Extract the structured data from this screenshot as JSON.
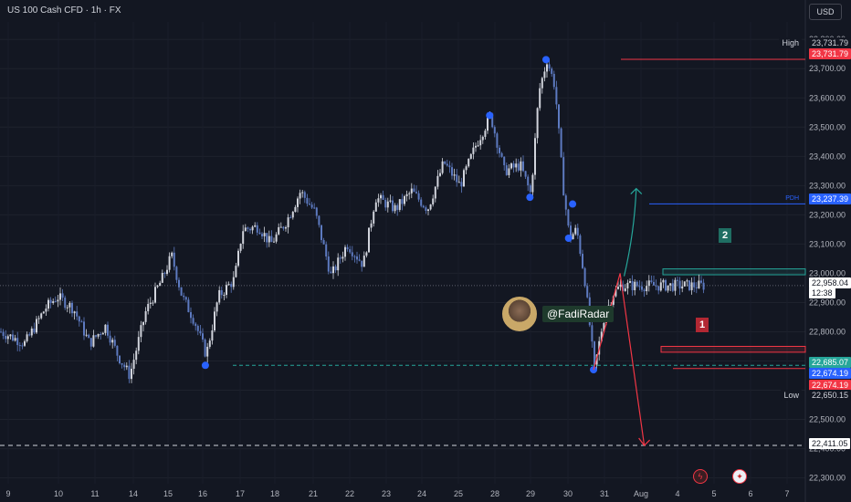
{
  "header": {
    "symbol_title": "US 100 Cash CFD · 1h · FX",
    "currency": "USD"
  },
  "author": {
    "handle": "@FadiRadar"
  },
  "badges": {
    "scenario_1": "1",
    "scenario_2": "2"
  },
  "colors": {
    "background": "#131722",
    "candle_up": "#d1d4dc",
    "candle_down": "#5d7ac0",
    "resistance_red": "#f23645",
    "pdh_blue": "#2962ff",
    "target_teal": "#26a69a",
    "swing_dot": "#2962ff"
  },
  "chart_data": {
    "type": "candlestick",
    "title": "US 100 Cash CFD · 1h · FX",
    "y_axis": {
      "ticks": [
        22300,
        22400,
        22500,
        22600,
        22700,
        22800,
        22900,
        23000,
        23100,
        23200,
        23300,
        23400,
        23500,
        23600,
        23700,
        23800
      ],
      "tick_labels": [
        "22,300.00",
        "22,400.00",
        "22,500.00",
        "22,600.00",
        "22,700.00",
        "22,800.00",
        "22,900.00",
        "23,000.00",
        "23,100.00",
        "23,200.00",
        "23,300.00",
        "23,400.00",
        "23,500.00",
        "23,600.00",
        "23,700.00",
        "23,800.00"
      ],
      "range": [
        22280,
        23860
      ]
    },
    "x_axis": {
      "tick_labels": [
        "9",
        "10",
        "11",
        "14",
        "15",
        "16",
        "17",
        "18",
        "21",
        "22",
        "23",
        "24",
        "25",
        "28",
        "29",
        "30",
        "31",
        "Aug",
        "4",
        "5",
        "6",
        "7"
      ]
    },
    "price_tags": [
      {
        "label": "High",
        "value": "23,731.79",
        "kind": "high"
      },
      {
        "label": "",
        "value": "23,731.79",
        "kind": "red"
      },
      {
        "label": "PDH",
        "value": "23,237.39",
        "kind": "blue"
      },
      {
        "label": "",
        "value": "22,958.04",
        "kind": "current"
      },
      {
        "label": "",
        "value": "12:38",
        "kind": "countdown"
      },
      {
        "label": "",
        "value": "22,685.07",
        "kind": "teal"
      },
      {
        "label": "",
        "value": "22,674.19",
        "kind": "blue"
      },
      {
        "label": "",
        "value": "22,674.19",
        "kind": "red"
      },
      {
        "label": "Low",
        "value": "22,650.15",
        "kind": "low"
      },
      {
        "label": "",
        "value": "22,411.05",
        "kind": "white"
      }
    ],
    "levels": {
      "high": 23731.79,
      "pdh": 23237.39,
      "current": 22958.04,
      "equal_lows": 22685.07,
      "low_red": 22674.19,
      "low": 22650.15,
      "target": 22411.05,
      "resistance_zone": [
        22995,
        23015
      ],
      "support_zone": [
        22730,
        22750
      ]
    },
    "key_points": [
      {
        "x": 0.255,
        "y": 22685
      },
      {
        "x": 0.608,
        "y": 23540
      },
      {
        "x": 0.658,
        "y": 23260
      },
      {
        "x": 0.678,
        "y": 23731
      },
      {
        "x": 0.706,
        "y": 23120
      },
      {
        "x": 0.711,
        "y": 23237
      },
      {
        "x": 0.737,
        "y": 22670
      }
    ],
    "path": [
      [
        0.0,
        22800
      ],
      [
        0.03,
        22760
      ],
      [
        0.055,
        22880
      ],
      [
        0.07,
        22920
      ],
      [
        0.09,
        22880
      ],
      [
        0.11,
        22760
      ],
      [
        0.13,
        22820
      ],
      [
        0.145,
        22720
      ],
      [
        0.16,
        22650
      ],
      [
        0.18,
        22870
      ],
      [
        0.2,
        22980
      ],
      [
        0.212,
        23060
      ],
      [
        0.225,
        22920
      ],
      [
        0.24,
        22840
      ],
      [
        0.255,
        22720
      ],
      [
        0.27,
        22920
      ],
      [
        0.29,
        22980
      ],
      [
        0.3,
        23150
      ],
      [
        0.32,
        23160
      ],
      [
        0.335,
        23100
      ],
      [
        0.355,
        23180
      ],
      [
        0.372,
        23280
      ],
      [
        0.39,
        23210
      ],
      [
        0.41,
        22990
      ],
      [
        0.43,
        23100
      ],
      [
        0.45,
        23030
      ],
      [
        0.465,
        23260
      ],
      [
        0.49,
        23220
      ],
      [
        0.51,
        23280
      ],
      [
        0.53,
        23220
      ],
      [
        0.55,
        23380
      ],
      [
        0.57,
        23300
      ],
      [
        0.59,
        23440
      ],
      [
        0.608,
        23540
      ],
      [
        0.625,
        23350
      ],
      [
        0.645,
        23370
      ],
      [
        0.658,
        23270
      ],
      [
        0.668,
        23620
      ],
      [
        0.678,
        23731
      ],
      [
        0.688,
        23640
      ],
      [
        0.698,
        23300
      ],
      [
        0.706,
        23120
      ],
      [
        0.715,
        23150
      ],
      [
        0.725,
        22980
      ],
      [
        0.737,
        22670
      ],
      [
        0.748,
        22840
      ],
      [
        0.76,
        22930
      ],
      [
        0.77,
        22958
      ]
    ],
    "projections": [
      {
        "name": "1",
        "from": [
          0.77,
          23000
        ],
        "to": [
          0.8,
          22411
        ],
        "color": "red"
      },
      {
        "name": "2",
        "from": [
          0.775,
          22990
        ],
        "to": [
          0.79,
          23290
        ],
        "color": "teal"
      }
    ]
  }
}
